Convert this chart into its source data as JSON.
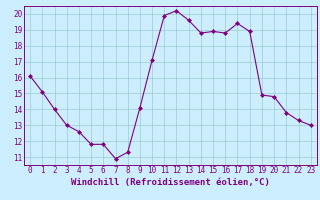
{
  "x": [
    0,
    1,
    2,
    3,
    4,
    5,
    6,
    7,
    8,
    9,
    10,
    11,
    12,
    13,
    14,
    15,
    16,
    17,
    18,
    19,
    20,
    21,
    22,
    23
  ],
  "y": [
    16.1,
    15.1,
    14.0,
    13.0,
    12.6,
    11.8,
    11.8,
    10.9,
    11.3,
    14.1,
    17.1,
    19.9,
    20.2,
    19.6,
    18.8,
    18.9,
    18.8,
    19.4,
    18.9,
    14.9,
    14.8,
    13.8,
    13.3,
    13.0
  ],
  "line_color": "#800080",
  "marker": "D",
  "marker_size": 2,
  "bg_color": "#cceeff",
  "grid_color": "#99cccc",
  "xlabel": "Windchill (Refroidissement éolien,°C)",
  "xlabel_color": "#800080",
  "xlim": [
    -0.5,
    23.5
  ],
  "ylim": [
    10.5,
    20.5
  ],
  "xticks": [
    0,
    1,
    2,
    3,
    4,
    5,
    6,
    7,
    8,
    9,
    10,
    11,
    12,
    13,
    14,
    15,
    16,
    17,
    18,
    19,
    20,
    21,
    22,
    23
  ],
  "yticks": [
    11,
    12,
    13,
    14,
    15,
    16,
    17,
    18,
    19,
    20
  ],
  "tick_label_fontsize": 5.5,
  "xlabel_fontsize": 6.5,
  "spine_color": "#800080",
  "tick_color": "#800080"
}
